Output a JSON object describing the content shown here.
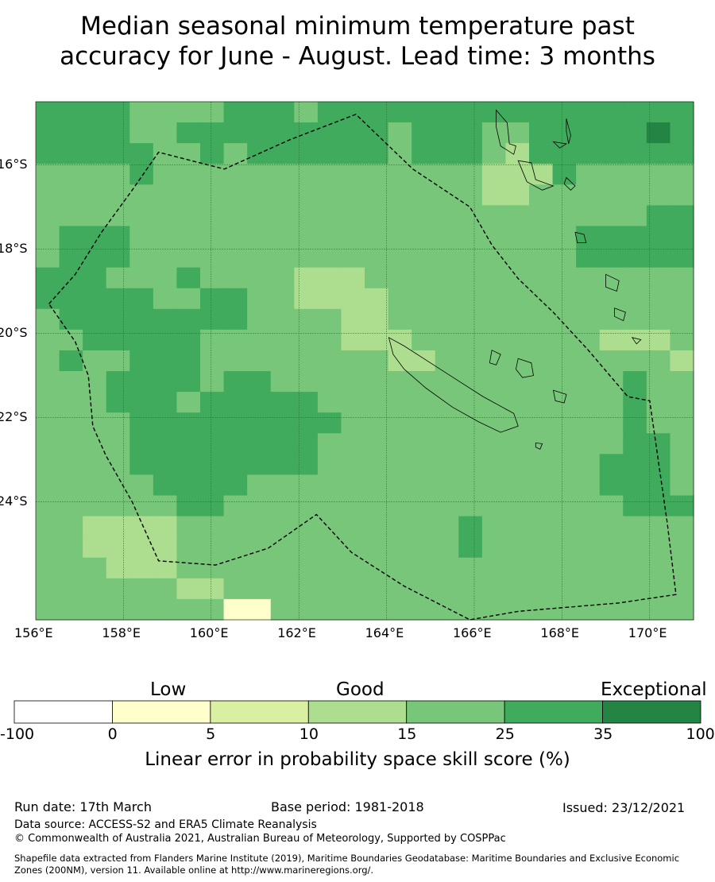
{
  "title_line1": "Median seasonal minimum temperature past",
  "title_line2": "accuracy for June - August. Lead time: 3 months",
  "map": {
    "lon_range": [
      156,
      171
    ],
    "lat_range": [
      -26.8,
      -14.5
    ],
    "x_ticks": [
      "156°E",
      "158°E",
      "160°E",
      "162°E",
      "164°E",
      "166°E",
      "168°E",
      "170°E"
    ],
    "y_ticks": [
      "16°S",
      "18°S",
      "20°S",
      "22°S",
      "24°S"
    ],
    "grid_rows": [
      "4444333344434444444444444444",
      "4444334444444443444334444454",
      "4444433434444443444324444444",
      "3333433333333333333222433333",
      "3333333333333333333223333333",
      "3333333333333333333333333344",
      "3444333333333333333333344444",
      "3444333333333333333333344444",
      "4443334333322233333333333333",
      "4444433443322223333333333333",
      "3444444443333223333333333333",
      "3344444333333222333333332223",
      "3433444333333332233333333332",
      "3334444344333333333333333433",
      "3334443444443333333333333433",
      "3333444444444333333333333433",
      "3333444444443333333333333443",
      "3333444444443333333333334443",
      "3333344443333333333333334443",
      "3333334433333333333333333444",
      "3322223333333333334333333333",
      "3322223333333333334333333333",
      "3332223333333333333333333333",
      "3333332233333333333333333333",
      "3333333311333333333333333333"
    ],
    "eez_boundary": [
      [
        156.3,
        -19.3
      ],
      [
        156.9,
        -18.6
      ],
      [
        157.5,
        -17.6
      ],
      [
        158.2,
        -16.6
      ],
      [
        158.8,
        -15.7
      ],
      [
        160.3,
        -16.1
      ],
      [
        161.8,
        -15.4
      ],
      [
        163.3,
        -14.8
      ],
      [
        164.6,
        -16.1
      ],
      [
        165.9,
        -17.0
      ],
      [
        166.4,
        -17.9
      ],
      [
        167.0,
        -18.7
      ],
      [
        167.8,
        -19.5
      ],
      [
        168.6,
        -20.4
      ],
      [
        169.5,
        -21.5
      ],
      [
        170.0,
        -21.6
      ],
      [
        170.4,
        -24.5
      ],
      [
        170.6,
        -26.2
      ],
      [
        169.3,
        -26.4
      ],
      [
        167.0,
        -26.6
      ],
      [
        165.9,
        -26.8
      ],
      [
        164.4,
        -26.0
      ],
      [
        163.2,
        -25.2
      ],
      [
        162.4,
        -24.3
      ],
      [
        161.3,
        -25.1
      ],
      [
        160.1,
        -25.5
      ],
      [
        158.8,
        -25.4
      ],
      [
        158.2,
        -24.0
      ],
      [
        157.6,
        -22.9
      ],
      [
        157.3,
        -22.2
      ],
      [
        157.2,
        -21.0
      ],
      [
        156.9,
        -20.2
      ],
      [
        156.3,
        -19.3
      ]
    ]
  },
  "colorbar": {
    "header_low": "Low",
    "header_good": "Good",
    "header_exceptional": "Exceptional",
    "bins": [
      {
        "from": -100,
        "to": 0,
        "color": "#ffffff"
      },
      {
        "from": 0,
        "to": 5,
        "color": "#ffffcc"
      },
      {
        "from": 5,
        "to": 10,
        "color": "#d9f0a3"
      },
      {
        "from": 10,
        "to": 15,
        "color": "#addd8e"
      },
      {
        "from": 15,
        "to": 25,
        "color": "#78c679"
      },
      {
        "from": 25,
        "to": 35,
        "color": "#41ab5d"
      },
      {
        "from": 35,
        "to": 100,
        "color": "#238443"
      }
    ],
    "tick_labels": [
      "-100",
      "0",
      "5",
      "10",
      "15",
      "25",
      "35",
      "100"
    ],
    "label": "Linear error in probability space skill score (%)"
  },
  "footer": {
    "run_date": "Run date: 17th March",
    "base_period": "Base period: 1981-2018",
    "issued": "Issued: 23/12/2021",
    "data_source": "Data source: ACCESS-S2 and ERA5 Climate Reanalysis",
    "copyright": "© Commonwealth of Australia 2021, Australian Bureau of Meteorology, Supported by COSPPac",
    "shapefile_line1": "Shapefile data extracted from Flanders Marine Institute (2019), Maritime Boundaries Geodatabase: Maritime Boundaries and Exclusive Economic",
    "shapefile_line2": "Zones (200NM), version 11. Available online at http://www.marineregions.org/."
  }
}
